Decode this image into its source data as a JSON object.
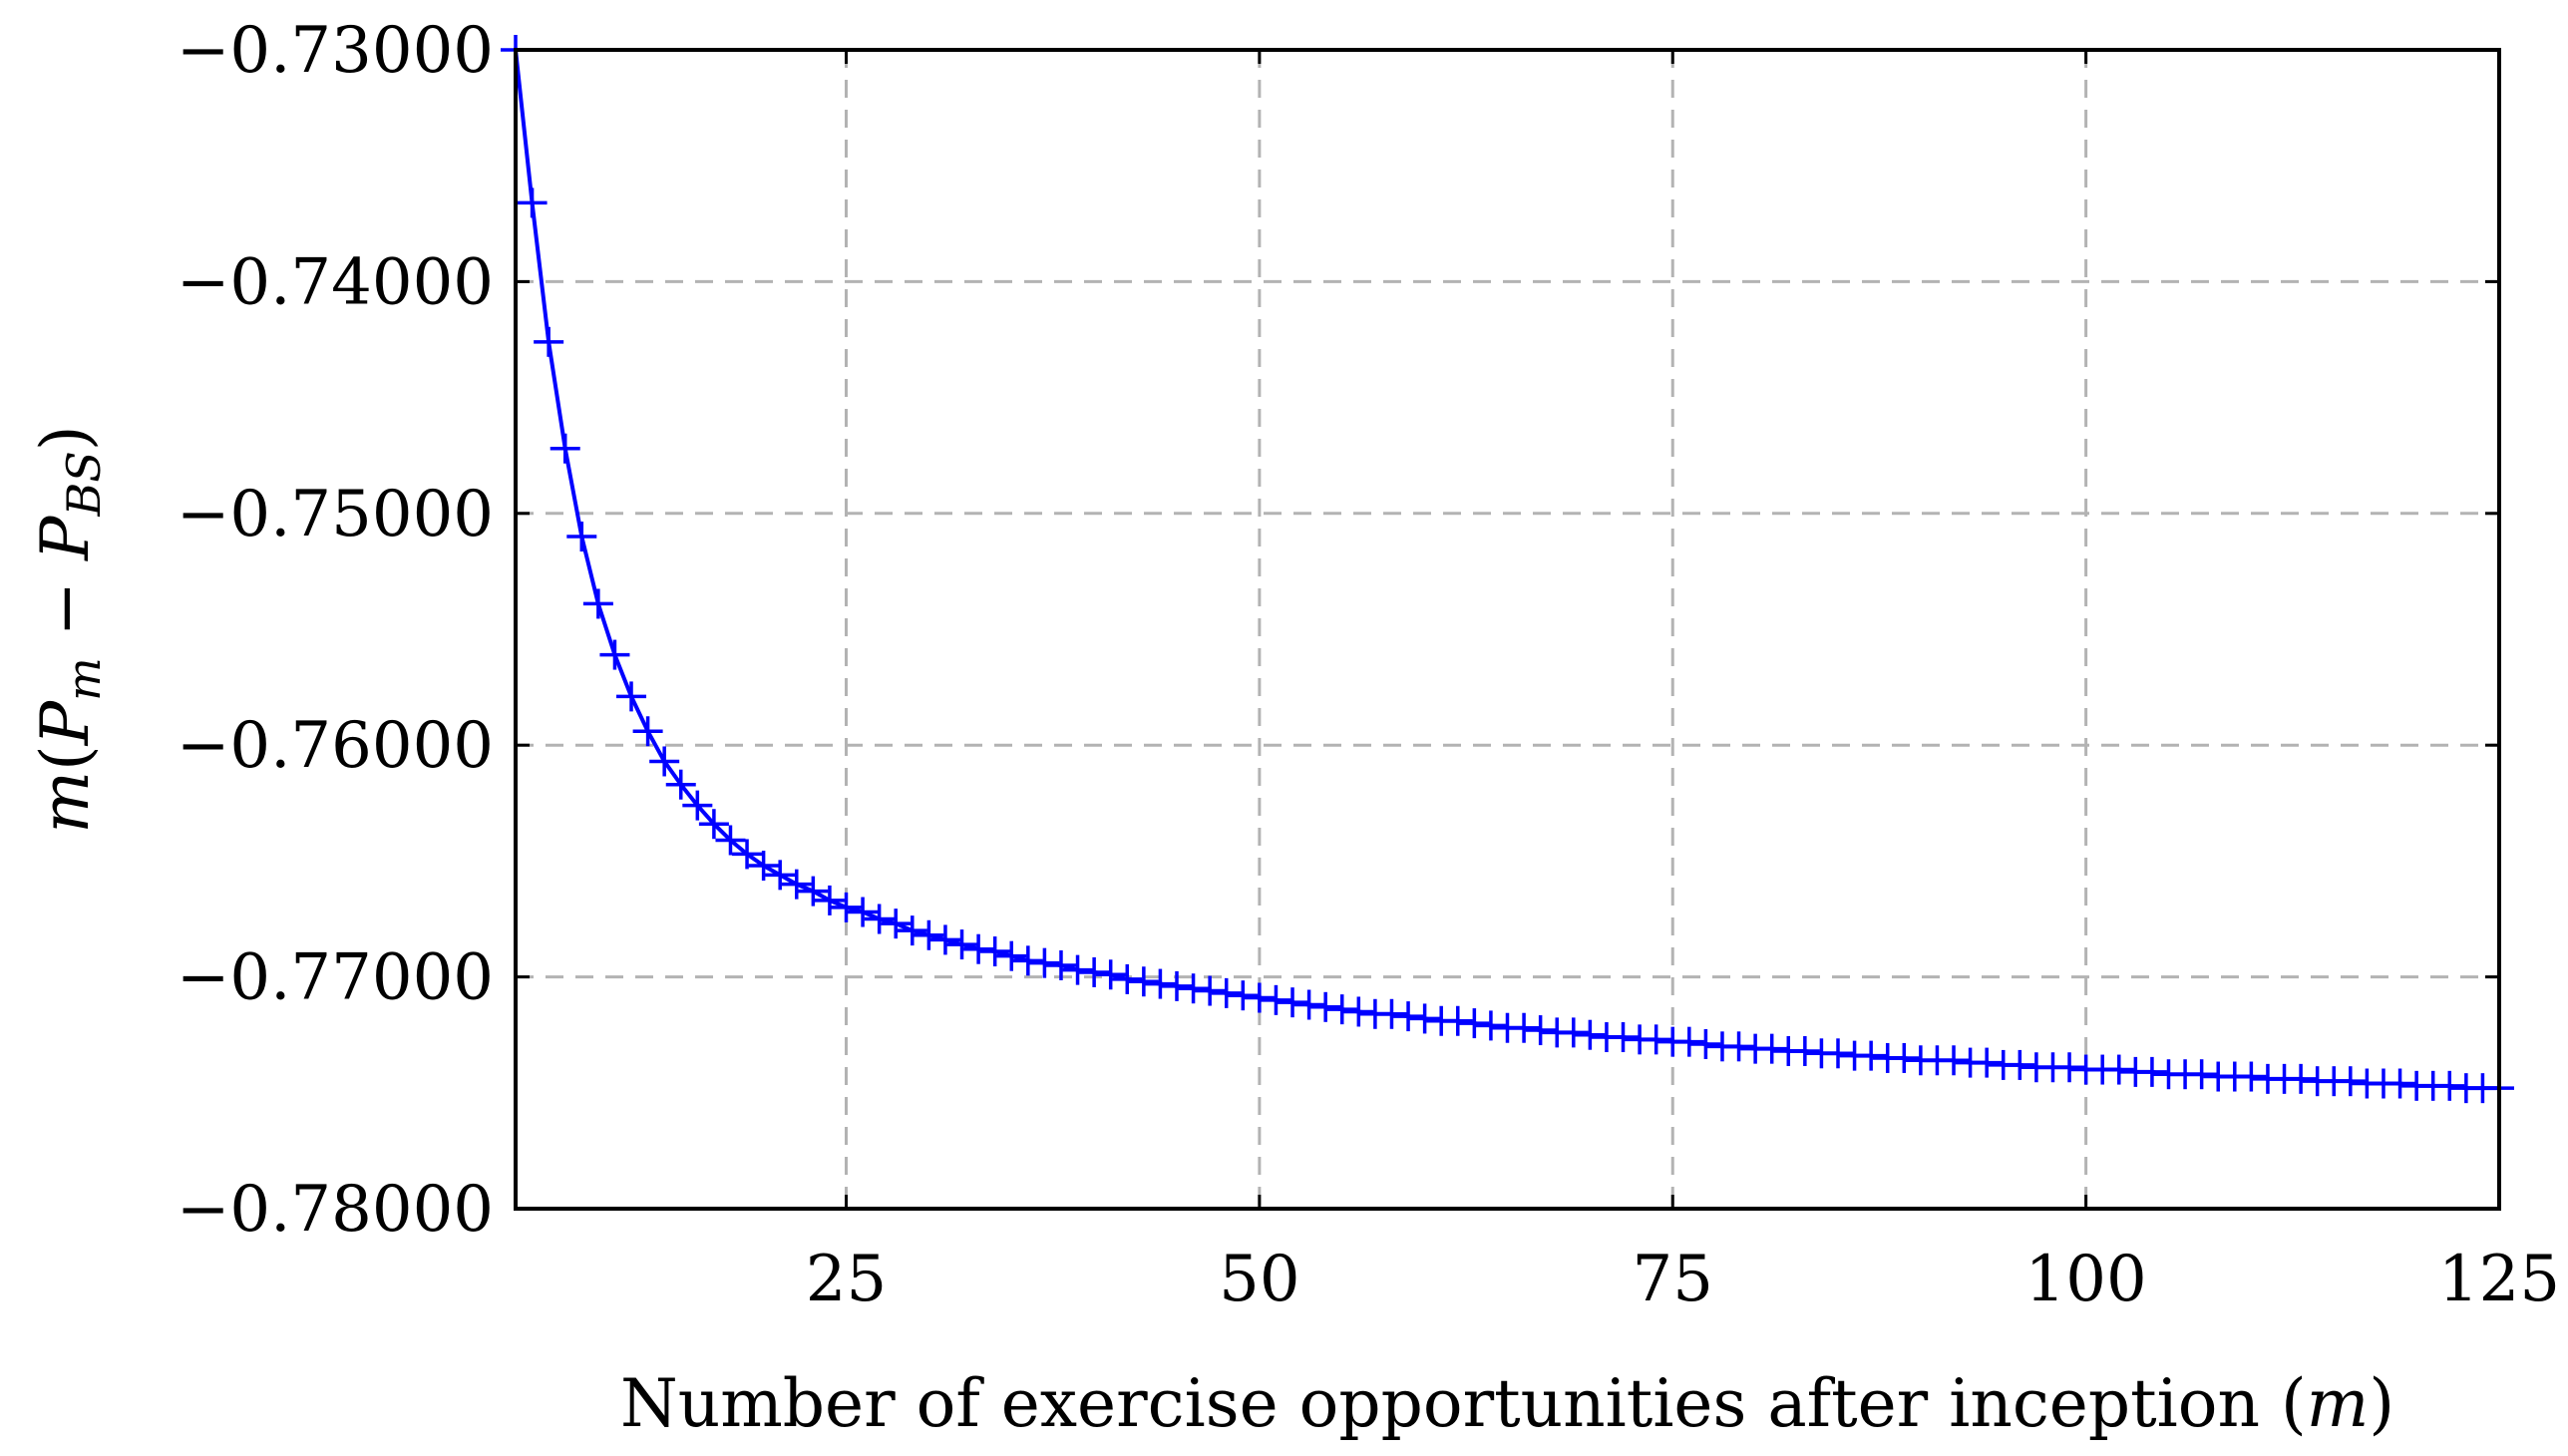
{
  "chart_data": {
    "type": "line",
    "xlabel": "Number of exercise opportunities after inception (m)",
    "ylabel": "m(P_m − P_BS)",
    "xlim": [
      5,
      125
    ],
    "ylim": [
      -0.78,
      -0.73
    ],
    "x_ticks": [
      25,
      50,
      75,
      100,
      125
    ],
    "y_ticks": [
      -0.73,
      -0.74,
      -0.75,
      -0.76,
      -0.77,
      -0.78
    ],
    "x_tick_labels": [
      "25",
      "50",
      "75",
      "100",
      "125"
    ],
    "y_tick_labels": [
      "−0.73000",
      "−0.74000",
      "−0.75000",
      "−0.76000",
      "−0.77000",
      "−0.78000"
    ],
    "grid": true,
    "legend": "none",
    "series": [
      {
        "color": "#0000ff",
        "marker": "+",
        "x": [
          5,
          6,
          7,
          8,
          9,
          10,
          11,
          12,
          13,
          14,
          15,
          16,
          17,
          18,
          19,
          20,
          21,
          22,
          23,
          24,
          25,
          26,
          27,
          28,
          29,
          30,
          31,
          32,
          33,
          34,
          35,
          36,
          37,
          38,
          39,
          40,
          41,
          42,
          43,
          44,
          45,
          46,
          47,
          48,
          49,
          50,
          51,
          52,
          53,
          54,
          55,
          56,
          57,
          58,
          59,
          60,
          61,
          62,
          63,
          64,
          65,
          66,
          67,
          68,
          69,
          70,
          71,
          72,
          73,
          74,
          75,
          76,
          77,
          78,
          79,
          80,
          81,
          82,
          83,
          84,
          85,
          86,
          87,
          88,
          89,
          90,
          91,
          92,
          93,
          94,
          95,
          96,
          97,
          98,
          99,
          100,
          101,
          102,
          103,
          104,
          105,
          106,
          107,
          108,
          109,
          110,
          111,
          112,
          113,
          114,
          115,
          116,
          117,
          118,
          119,
          120,
          121,
          122,
          123,
          124,
          125
        ],
        "values": [
          -0.73,
          -0.7366,
          -0.7426,
          -0.7472,
          -0.751,
          -0.7539,
          -0.7561,
          -0.7579,
          -0.7594,
          -0.7607,
          -0.7617,
          -0.7626,
          -0.7634,
          -0.7641,
          -0.7647,
          -0.7652,
          -0.7656,
          -0.766,
          -0.7663,
          -0.7667,
          -0.767,
          -0.7672,
          -0.7675,
          -0.7677,
          -0.768,
          -0.7682,
          -0.7684,
          -0.7686,
          -0.7688,
          -0.7689,
          -0.7691,
          -0.7693,
          -0.7694,
          -0.7695,
          -0.7697,
          -0.7698,
          -0.7699,
          -0.7701,
          -0.7702,
          -0.7703,
          -0.7704,
          -0.7705,
          -0.7706,
          -0.7707,
          -0.7708,
          -0.7709,
          -0.771,
          -0.7711,
          -0.7712,
          -0.7713,
          -0.7714,
          -0.7715,
          -0.7716,
          -0.7716,
          -0.7717,
          -0.7718,
          -0.7719,
          -0.7719,
          -0.772,
          -0.7721,
          -0.7722,
          -0.7722,
          -0.7723,
          -0.7724,
          -0.7724,
          -0.7725,
          -0.7726,
          -0.7726,
          -0.7727,
          -0.7727,
          -0.7728,
          -0.7728,
          -0.7729,
          -0.773,
          -0.773,
          -0.7731,
          -0.7731,
          -0.7732,
          -0.7732,
          -0.7733,
          -0.7733,
          -0.7734,
          -0.7734,
          -0.7735,
          -0.7735,
          -0.7736,
          -0.7736,
          -0.7736,
          -0.7737,
          -0.7737,
          -0.7738,
          -0.7738,
          -0.7739,
          -0.7739,
          -0.7739,
          -0.774,
          -0.774,
          -0.774,
          -0.7741,
          -0.7741,
          -0.7742,
          -0.7742,
          -0.7742,
          -0.7743,
          -0.7743,
          -0.7743,
          -0.7744,
          -0.7744,
          -0.7744,
          -0.7745,
          -0.7745,
          -0.7745,
          -0.7746,
          -0.7746,
          -0.7746,
          -0.7747,
          -0.7747,
          -0.7747,
          -0.7748,
          -0.7748,
          -0.7748
        ]
      }
    ]
  }
}
